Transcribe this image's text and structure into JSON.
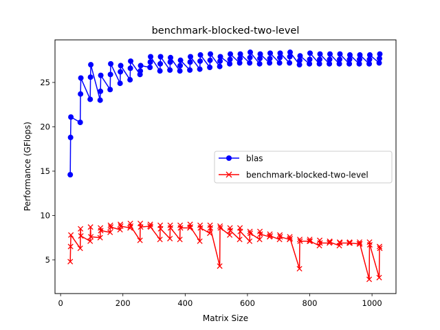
{
  "chart_data": {
    "type": "line",
    "title": "benchmark-blocked-two-level",
    "xlabel": "Matrix Size",
    "ylabel": "Performance (GFlops)",
    "xlim": [
      -18,
      1077
    ],
    "ylim": [
      1.2,
      29.8
    ],
    "xticks": [
      0,
      200,
      400,
      600,
      800,
      1000
    ],
    "yticks": [
      5,
      10,
      15,
      20,
      25
    ],
    "grid": false,
    "legend_position": "center-right",
    "series": [
      {
        "name": "blas",
        "color": "#0000ff",
        "marker": "circle",
        "points": [
          [
            31,
            14.6
          ],
          [
            32,
            18.8
          ],
          [
            33,
            21.1
          ],
          [
            63,
            20.5
          ],
          [
            64,
            23.7
          ],
          [
            65,
            25.5
          ],
          [
            95,
            23.1
          ],
          [
            96,
            25.6
          ],
          [
            97,
            27.0
          ],
          [
            127,
            23.0
          ],
          [
            128,
            24.0
          ],
          [
            129,
            25.8
          ],
          [
            159,
            24.2
          ],
          [
            160,
            25.9
          ],
          [
            161,
            27.1
          ],
          [
            191,
            24.9
          ],
          [
            192,
            26.2
          ],
          [
            193,
            26.9
          ],
          [
            223,
            25.3
          ],
          [
            224,
            26.6
          ],
          [
            225,
            27.4
          ],
          [
            255,
            25.9
          ],
          [
            256,
            26.3
          ],
          [
            257,
            26.9
          ],
          [
            287,
            26.7
          ],
          [
            288,
            27.3
          ],
          [
            289,
            27.9
          ],
          [
            319,
            26.3
          ],
          [
            320,
            27.1
          ],
          [
            321,
            27.9
          ],
          [
            351,
            26.4
          ],
          [
            352,
            27.3
          ],
          [
            353,
            27.8
          ],
          [
            383,
            26.3
          ],
          [
            384,
            26.9
          ],
          [
            385,
            27.5
          ],
          [
            415,
            26.4
          ],
          [
            416,
            27.3
          ],
          [
            417,
            27.9
          ],
          [
            447,
            26.5
          ],
          [
            448,
            27.4
          ],
          [
            449,
            28.1
          ],
          [
            479,
            26.7
          ],
          [
            480,
            27.5
          ],
          [
            481,
            28.2
          ],
          [
            511,
            26.8
          ],
          [
            512,
            27.4
          ],
          [
            513,
            27.9
          ],
          [
            543,
            27.1
          ],
          [
            544,
            27.6
          ],
          [
            545,
            28.2
          ],
          [
            575,
            27.2
          ],
          [
            576,
            27.7
          ],
          [
            577,
            28.2
          ],
          [
            607,
            27.2
          ],
          [
            608,
            27.8
          ],
          [
            609,
            28.4
          ],
          [
            639,
            27.1
          ],
          [
            640,
            27.7
          ],
          [
            641,
            28.2
          ],
          [
            671,
            27.2
          ],
          [
            672,
            27.7
          ],
          [
            673,
            28.3
          ],
          [
            703,
            27.2
          ],
          [
            704,
            27.8
          ],
          [
            705,
            28.3
          ],
          [
            735,
            27.2
          ],
          [
            736,
            27.9
          ],
          [
            737,
            28.4
          ],
          [
            767,
            27.0
          ],
          [
            768,
            27.5
          ],
          [
            769,
            28.0
          ],
          [
            799,
            27.1
          ],
          [
            800,
            27.6
          ],
          [
            801,
            28.3
          ],
          [
            831,
            27.1
          ],
          [
            832,
            27.6
          ],
          [
            833,
            28.2
          ],
          [
            863,
            27.1
          ],
          [
            864,
            27.6
          ],
          [
            865,
            28.2
          ],
          [
            895,
            27.1
          ],
          [
            896,
            27.6
          ],
          [
            897,
            28.2
          ],
          [
            927,
            27.1
          ],
          [
            928,
            27.6
          ],
          [
            929,
            28.1
          ],
          [
            959,
            27.1
          ],
          [
            960,
            27.6
          ],
          [
            961,
            28.1
          ],
          [
            991,
            27.1
          ],
          [
            992,
            27.6
          ],
          [
            993,
            28.1
          ],
          [
            1023,
            27.2
          ],
          [
            1024,
            27.7
          ],
          [
            1025,
            28.2
          ]
        ]
      },
      {
        "name": "benchmark-blocked-two-level",
        "color": "#ff0000",
        "marker": "x",
        "points": [
          [
            31,
            4.8
          ],
          [
            32,
            6.5
          ],
          [
            33,
            7.8
          ],
          [
            63,
            6.3
          ],
          [
            64,
            8.5
          ],
          [
            65,
            7.7
          ],
          [
            95,
            7.1
          ],
          [
            96,
            8.7
          ],
          [
            97,
            7.6
          ],
          [
            127,
            7.5
          ],
          [
            128,
            8.6
          ],
          [
            129,
            8.3
          ],
          [
            159,
            8.1
          ],
          [
            160,
            8.9
          ],
          [
            161,
            8.7
          ],
          [
            191,
            8.4
          ],
          [
            192,
            9.0
          ],
          [
            193,
            8.8
          ],
          [
            223,
            8.6
          ],
          [
            224,
            9.1
          ],
          [
            225,
            8.8
          ],
          [
            255,
            7.2
          ],
          [
            256,
            9.1
          ],
          [
            257,
            8.7
          ],
          [
            287,
            8.8
          ],
          [
            288,
            9.0
          ],
          [
            289,
            8.7
          ],
          [
            319,
            7.3
          ],
          [
            320,
            8.9
          ],
          [
            321,
            8.5
          ],
          [
            351,
            7.4
          ],
          [
            352,
            8.9
          ],
          [
            353,
            8.6
          ],
          [
            383,
            7.3
          ],
          [
            384,
            8.9
          ],
          [
            385,
            8.6
          ],
          [
            415,
            8.6
          ],
          [
            416,
            9.0
          ],
          [
            417,
            8.7
          ],
          [
            447,
            7.1
          ],
          [
            448,
            8.9
          ],
          [
            449,
            8.6
          ],
          [
            479,
            8.0
          ],
          [
            480,
            8.9
          ],
          [
            481,
            8.6
          ],
          [
            511,
            4.3
          ],
          [
            512,
            8.8
          ],
          [
            513,
            8.6
          ],
          [
            543,
            7.8
          ],
          [
            544,
            8.6
          ],
          [
            545,
            8.3
          ],
          [
            575,
            7.3
          ],
          [
            576,
            8.6
          ],
          [
            577,
            8.2
          ],
          [
            607,
            7.1
          ],
          [
            608,
            8.2
          ],
          [
            609,
            8.0
          ],
          [
            639,
            7.3
          ],
          [
            640,
            8.2
          ],
          [
            641,
            7.9
          ],
          [
            671,
            7.6
          ],
          [
            672,
            7.9
          ],
          [
            673,
            7.7
          ],
          [
            703,
            7.3
          ],
          [
            704,
            7.8
          ],
          [
            705,
            7.6
          ],
          [
            735,
            7.3
          ],
          [
            736,
            7.6
          ],
          [
            737,
            7.4
          ],
          [
            767,
            4.0
          ],
          [
            768,
            7.3
          ],
          [
            769,
            7.1
          ],
          [
            799,
            7.1
          ],
          [
            800,
            7.3
          ],
          [
            801,
            7.1
          ],
          [
            831,
            6.6
          ],
          [
            832,
            7.2
          ],
          [
            833,
            6.9
          ],
          [
            863,
            6.9
          ],
          [
            864,
            7.1
          ],
          [
            865,
            7.0
          ],
          [
            895,
            6.6
          ],
          [
            896,
            7.0
          ],
          [
            897,
            6.9
          ],
          [
            927,
            6.9
          ],
          [
            928,
            7.0
          ],
          [
            929,
            6.9
          ],
          [
            959,
            6.8
          ],
          [
            960,
            7.0
          ],
          [
            961,
            6.8
          ],
          [
            991,
            2.8
          ],
          [
            992,
            7.0
          ],
          [
            993,
            6.7
          ],
          [
            1023,
            3.0
          ],
          [
            1024,
            6.5
          ],
          [
            1025,
            6.3
          ]
        ]
      }
    ]
  }
}
